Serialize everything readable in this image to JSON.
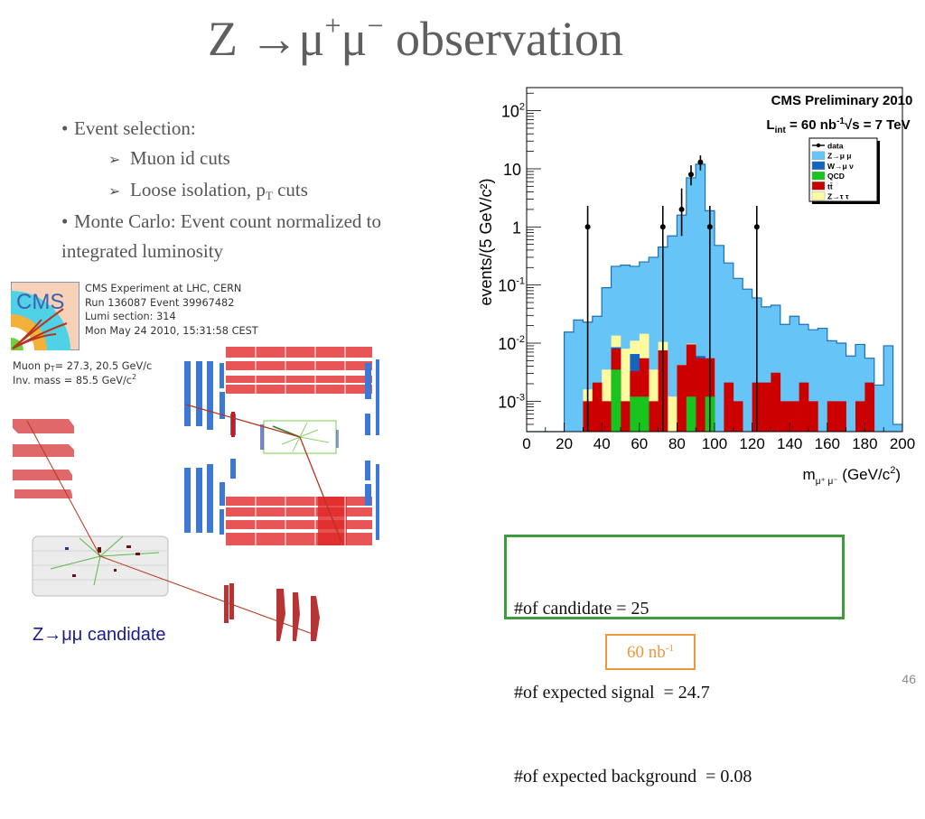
{
  "slide": {
    "title_prefix": "Z →μ",
    "title_sup1": "+",
    "title_mid": "μ",
    "title_sup2": "−",
    "title_suffix": " observation",
    "page_number": "46"
  },
  "bullets": {
    "b1": "Event selection:",
    "b1_sub1": "Muon id cuts",
    "b1_sub2_pre": "Loose isolation, p",
    "b1_sub2_sub": "T",
    "b1_sub2_post": "  cuts",
    "b2_line1": "Monte Carlo:  Event count normalized to",
    "b2_line2": "integrated luminosity",
    "bullet_glyph": "•",
    "arrow_glyph": "➢"
  },
  "event_display": {
    "logo_text": "CMS",
    "info_lines": [
      "CMS Experiment at LHC, CERN",
      "Run 136087 Event 39967482",
      "Lumi section: 314",
      "Mon May 24 2010, 15:31:58 CEST"
    ],
    "muon_pt_pre": "Muon p",
    "muon_pt_sub": "T",
    "muon_pt_post": "= 27.3, 20.5 GeV/c",
    "inv_mass_pre": "Inv. mass  = 85.5 GeV/c",
    "inv_mass_sup": "2",
    "caption": "Z→μμ candidate"
  },
  "stats": {
    "lines": [
      "#of candidate = 25",
      "#of expected signal  = 24.7",
      "#of expected background  = 0.08"
    ],
    "lumi_value": "60 nb",
    "lumi_sup": "-1",
    "box_color": "#3f9a3f",
    "lumi_color": "#f0963c"
  },
  "chart_data": {
    "type": "bar",
    "subtype": "stacked-histogram-log",
    "title": "CMS Preliminary 2010",
    "subtitle": "L_int = 60 nb^-1  √s = 7 TeV",
    "subtitle_parts": {
      "l": "L",
      "l_sub": "int",
      "eq": " = 60 nb",
      "exp": "-1",
      "sqrt": "√s = 7 TeV"
    },
    "xlabel": "m_{μ+μ-} (GeV/c²)",
    "xlabel_parts": {
      "m": "m",
      "sub": "μ⁺ μ⁻",
      "unit": " (GeV/c",
      "sup": "2",
      "close": ")"
    },
    "ylabel": "events/(5 GeV/c²)",
    "xlim": [
      0,
      200
    ],
    "ylim": [
      0.0003,
      250
    ],
    "yscale": "log",
    "bin_width": 5,
    "x_ticks": [
      "0",
      "20",
      "40",
      "60",
      "80",
      "100",
      "120",
      "140",
      "160",
      "180",
      "200"
    ],
    "y_ticks": [
      {
        "value": 100,
        "label": "10",
        "exp": "2"
      },
      {
        "value": 10,
        "label": "10",
        "exp": ""
      },
      {
        "value": 1,
        "label": "1",
        "exp": ""
      },
      {
        "value": 0.1,
        "label": "10",
        "exp": "-1"
      },
      {
        "value": 0.01,
        "label": "10",
        "exp": "-2"
      },
      {
        "value": 0.001,
        "label": "10",
        "exp": "-3"
      }
    ],
    "legend_position": "top-right",
    "legend": [
      {
        "name": "data",
        "kind": "marker",
        "color": "#000000"
      },
      {
        "name": "Z→μ μ",
        "kind": "fill",
        "color": "#66c4f6"
      },
      {
        "name": "W→μ ν",
        "kind": "fill",
        "color": "#1565c0"
      },
      {
        "name": "QCD",
        "kind": "fill",
        "color": "#19c41e"
      },
      {
        "name": "tt̄",
        "kind": "fill",
        "color": "#cc0000"
      },
      {
        "name": "Z→τ τ",
        "kind": "fill",
        "color": "#fdfaa0"
      }
    ],
    "bins_low_edges": [
      0,
      5,
      10,
      15,
      20,
      25,
      30,
      35,
      40,
      45,
      50,
      55,
      60,
      65,
      70,
      75,
      80,
      85,
      90,
      95,
      100,
      105,
      110,
      115,
      120,
      125,
      130,
      135,
      140,
      145,
      150,
      155,
      160,
      165,
      170,
      175,
      180,
      185,
      190,
      195
    ],
    "series": [
      {
        "name": "Z→μ μ (total stack)",
        "color": "#66c4f6",
        "values": [
          0,
          0,
          0,
          0,
          0.0155,
          0.025,
          0.023,
          0.029,
          0.09,
          0.21,
          0.22,
          0.21,
          0.25,
          0.3,
          0.45,
          0.7,
          1.6,
          7.0,
          12.0,
          1.9,
          0.48,
          0.24,
          0.13,
          0.085,
          0.06,
          0.042,
          0.045,
          0.021,
          0.029,
          0.021,
          0.017,
          0.018,
          0.011,
          0.01,
          0.006,
          0.0095,
          0.0055,
          0.0019,
          0.009,
          0.0004
        ]
      },
      {
        "name": "Z→τ τ (stack top)",
        "color": "#fdfaa0",
        "values": [
          0,
          0,
          0,
          0,
          0,
          0,
          0.0016,
          0.0021,
          0.0035,
          0.0135,
          0.008,
          0.011,
          0.0145,
          0.0035,
          0.0105,
          0.0012,
          0.0042,
          0.0098,
          0.0058,
          0.0055,
          0,
          0,
          0,
          0,
          0,
          0,
          0,
          0,
          0,
          0,
          0,
          0,
          0,
          0,
          0,
          0,
          0,
          0,
          0,
          0
        ]
      },
      {
        "name": "W→μ ν (stack top)",
        "color": "#1565c0",
        "values": [
          0,
          0,
          0,
          0,
          0,
          0,
          0,
          0,
          0,
          0.0085,
          0,
          0.0065,
          0.0018,
          0,
          0,
          0,
          0,
          0,
          0.006,
          0,
          0,
          0,
          0,
          0,
          0,
          0,
          0,
          0,
          0,
          0,
          0,
          0,
          0,
          0,
          0,
          0,
          0,
          0,
          0,
          0
        ]
      },
      {
        "name": "tt̄ (stack top)",
        "color": "#cc0000",
        "values": [
          0,
          0,
          0,
          0,
          0,
          0,
          0.001,
          0.0021,
          0.001,
          0.008,
          0.001,
          0.0033,
          0.0055,
          0.001,
          0.0075,
          0,
          0.0042,
          0.0095,
          0.0055,
          0.0055,
          0,
          0.0021,
          0.001,
          0,
          0.0021,
          0.0021,
          0.0031,
          0.001,
          0.001,
          0.0021,
          0.001,
          0,
          0.001,
          0.001,
          0,
          0.001,
          0.0021,
          0,
          0,
          0
        ]
      },
      {
        "name": "QCD",
        "color": "#19c41e",
        "values": [
          0,
          0,
          0,
          0,
          0,
          0,
          0,
          0,
          0,
          0.0035,
          0,
          0.0012,
          0.0012,
          0,
          0,
          0,
          0,
          0.0012,
          0,
          0.0012,
          0,
          0,
          0,
          0,
          0,
          0,
          0,
          0,
          0,
          0,
          0,
          0,
          0,
          0,
          0,
          0,
          0,
          0,
          0,
          0
        ]
      }
    ],
    "data_points": [
      {
        "x": 32.5,
        "y": 1,
        "err_lo": 0.0003,
        "err_hi": 2.3
      },
      {
        "x": 72.5,
        "y": 1,
        "err_lo": 0.0003,
        "err_hi": 2.3
      },
      {
        "x": 82.5,
        "y": 2,
        "err_lo": 0.7,
        "err_hi": 4.6
      },
      {
        "x": 87.5,
        "y": 8,
        "err_lo": 5.2,
        "err_hi": 11.5
      },
      {
        "x": 92.5,
        "y": 13,
        "err_lo": 9.4,
        "err_hi": 17.0
      },
      {
        "x": 97.5,
        "y": 1,
        "err_lo": 0.0003,
        "err_hi": 2.3
      },
      {
        "x": 122.5,
        "y": 1,
        "err_lo": 0.0003,
        "err_hi": 2.3
      }
    ]
  }
}
